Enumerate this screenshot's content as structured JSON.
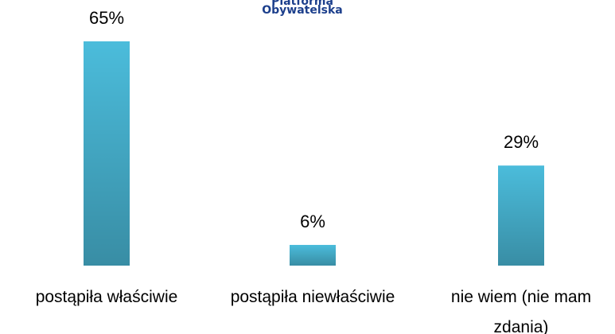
{
  "logo": {
    "line1": "Platforma",
    "line2": "Obywatelska"
  },
  "chart_data": {
    "type": "bar",
    "categories": [
      "postąpiła właściwie",
      "postąpiła niewłaściwie",
      "nie wiem (nie mam zdania)"
    ],
    "values": [
      65,
      6,
      29
    ],
    "value_labels": [
      "65%",
      "6%",
      "29%"
    ],
    "color": "#4bbcdb"
  }
}
